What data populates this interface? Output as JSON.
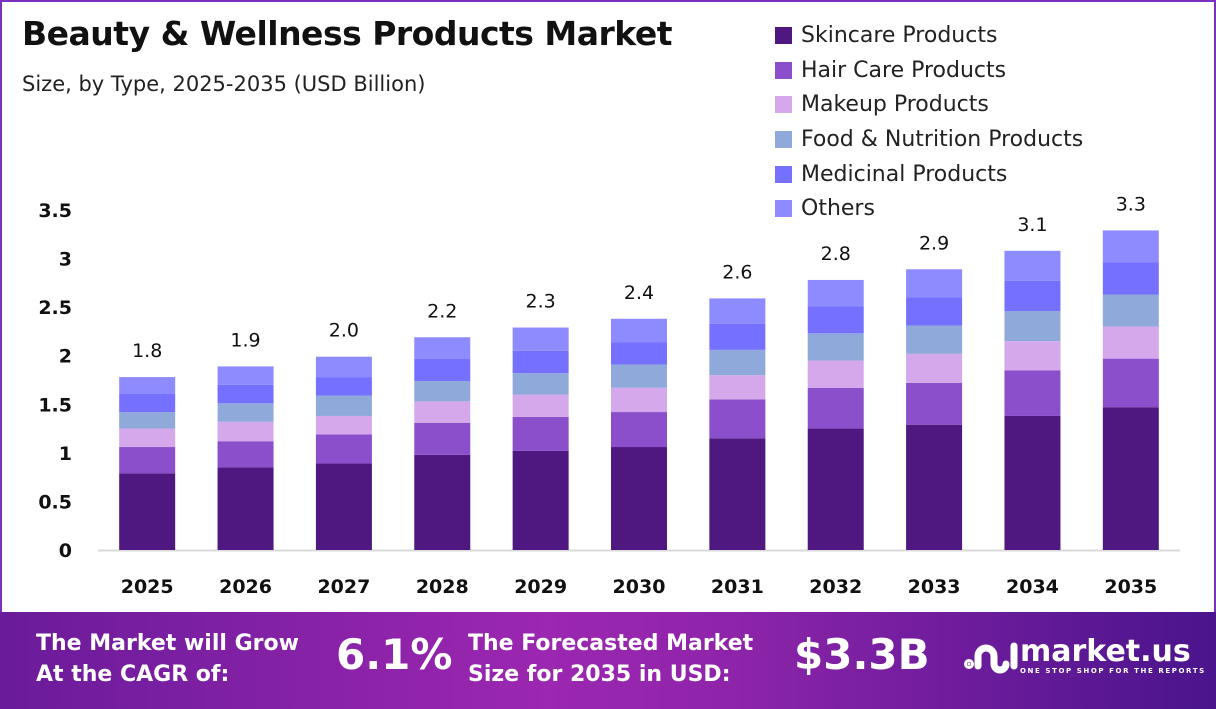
{
  "chart_data": {
    "type": "bar",
    "stacked": true,
    "title": "Beauty & Wellness Products Market",
    "subtitle": "Size, by Type, 2025-2035 (USD Billion)",
    "xlabel": "",
    "ylabel": "",
    "ylim": [
      0,
      3.5
    ],
    "yticks": [
      "0",
      "0.5",
      "1",
      "1.5",
      "2",
      "2.5",
      "3",
      "3.5"
    ],
    "grid": false,
    "legend_position": "top-right",
    "categories": [
      "2025",
      "2026",
      "2027",
      "2028",
      "2029",
      "2030",
      "2031",
      "2032",
      "2033",
      "2034",
      "2035"
    ],
    "totals": [
      "1.8",
      "1.9",
      "2.0",
      "2.2",
      "2.3",
      "2.4",
      "2.6",
      "2.8",
      "2.9",
      "3.1",
      "3.3"
    ],
    "series": [
      {
        "name": "Skincare Products",
        "color": "#4f1780",
        "values": [
          0.79,
          0.85,
          0.89,
          0.98,
          1.02,
          1.06,
          1.15,
          1.25,
          1.29,
          1.38,
          1.47
        ]
      },
      {
        "name": "Hair Care Products",
        "color": "#8b4fcb",
        "values": [
          0.27,
          0.27,
          0.3,
          0.33,
          0.35,
          0.36,
          0.4,
          0.42,
          0.43,
          0.47,
          0.5
        ]
      },
      {
        "name": "Makeup Products",
        "color": "#d4a8ea",
        "values": [
          0.19,
          0.2,
          0.19,
          0.22,
          0.23,
          0.25,
          0.25,
          0.28,
          0.3,
          0.3,
          0.33
        ]
      },
      {
        "name": "Food & Nutrition Products",
        "color": "#8fa9da",
        "values": [
          0.17,
          0.19,
          0.21,
          0.21,
          0.22,
          0.24,
          0.26,
          0.28,
          0.29,
          0.31,
          0.33
        ]
      },
      {
        "name": "Medicinal Products",
        "color": "#7570ff",
        "values": [
          0.19,
          0.19,
          0.19,
          0.23,
          0.23,
          0.23,
          0.27,
          0.28,
          0.29,
          0.31,
          0.33
        ]
      },
      {
        "name": "Others",
        "color": "#8e8aff",
        "values": [
          0.17,
          0.19,
          0.21,
          0.22,
          0.24,
          0.24,
          0.26,
          0.27,
          0.29,
          0.31,
          0.33
        ]
      }
    ]
  },
  "footer": {
    "cagr_label_1": "The Market will Grow",
    "cagr_label_2": "At the CAGR of:",
    "cagr_value": "6.1%",
    "forecast_label_1": "The Forecasted Market",
    "forecast_label_2": "Size for 2035 in USD:",
    "forecast_value": "$3.3B",
    "logo_text": "market.us",
    "logo_tagline": "ONE STOP SHOP FOR THE REPORTS"
  }
}
